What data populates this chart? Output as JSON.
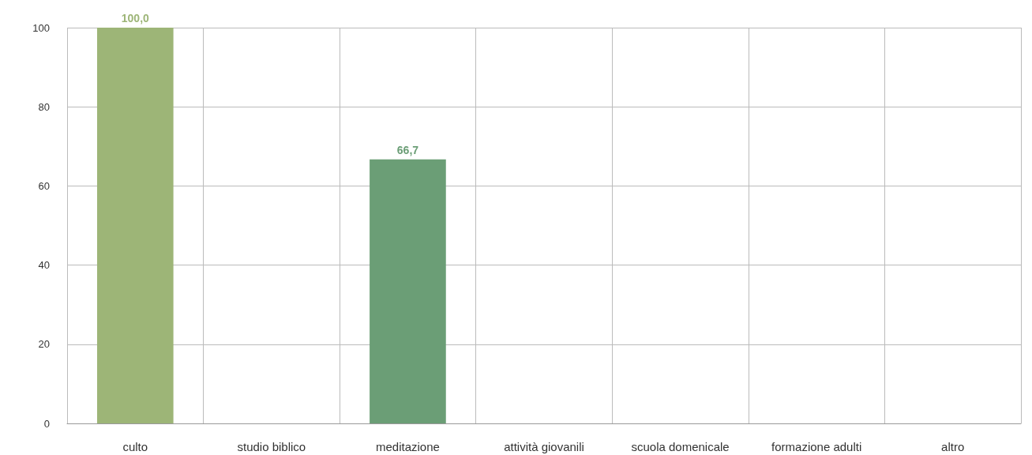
{
  "chart_data": {
    "type": "bar",
    "categories": [
      "culto",
      "studio biblico",
      "meditazione",
      "attività giovanili",
      "scuola domenicale",
      "formazione adulti",
      "altro"
    ],
    "values": [
      100,
      0,
      66.7,
      0,
      0,
      0,
      0
    ],
    "colors": [
      "#9db577",
      "#9db577",
      "#6b9e76",
      "#6b9e76",
      "#6b9e76",
      "#6b9e76",
      "#6b9e76"
    ],
    "value_labels": [
      "100,0",
      null,
      "66,7",
      null,
      null,
      null,
      null
    ],
    "ylim": [
      0,
      100
    ],
    "yticks": [
      0,
      20,
      40,
      60,
      80,
      100
    ],
    "grid": true
  }
}
